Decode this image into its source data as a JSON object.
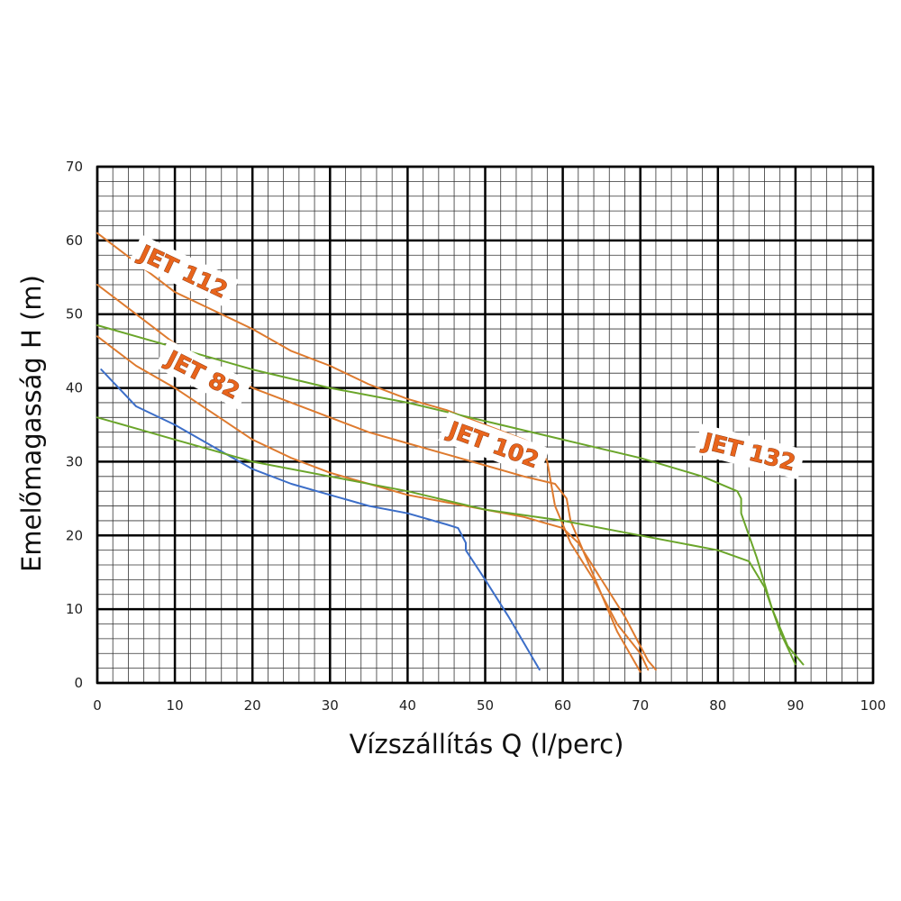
{
  "chart_data": {
    "type": "line",
    "title": "",
    "xlabel": "Vízszállítás Q (l/perc)",
    "ylabel": "Emelőmagasság H (m)",
    "xlim": [
      0,
      100
    ],
    "ylim": [
      0,
      70
    ],
    "x_ticks": [
      "0",
      "10",
      "20",
      "30",
      "40",
      "50",
      "60",
      "70",
      "80",
      "90",
      "100"
    ],
    "y_ticks": [
      "0",
      "10",
      "20",
      "30",
      "40",
      "50",
      "60",
      "70"
    ],
    "grid": true,
    "colors": {
      "blue": "#3c6ec8",
      "orange": "#de7a2e",
      "green": "#6aa52a",
      "label": "#e8641c"
    },
    "series": [
      {
        "color": "#3c6ec8",
        "points": [
          [
            0.5,
            42.5
          ],
          [
            5,
            37.5
          ],
          [
            10,
            35
          ],
          [
            15,
            32
          ],
          [
            20,
            29
          ],
          [
            25,
            27
          ],
          [
            30,
            25.5
          ],
          [
            35,
            24
          ],
          [
            40,
            23
          ],
          [
            45,
            21.5
          ],
          [
            46.5,
            21
          ],
          [
            47.5,
            19
          ],
          [
            47.5,
            18
          ],
          [
            50,
            14
          ],
          [
            53,
            9
          ],
          [
            57,
            1.8
          ]
        ]
      },
      {
        "name": "JET 82",
        "color": "#de7a2e",
        "points": [
          [
            0,
            47
          ],
          [
            5,
            43
          ],
          [
            10,
            40
          ],
          [
            15,
            36.5
          ],
          [
            20,
            33
          ],
          [
            25,
            30.5
          ],
          [
            30,
            28.5
          ],
          [
            35,
            27
          ],
          [
            40,
            25.5
          ],
          [
            45,
            24.5
          ],
          [
            50,
            23.5
          ],
          [
            55,
            22.5
          ],
          [
            60,
            21
          ],
          [
            62,
            19
          ],
          [
            65,
            14
          ],
          [
            68,
            9
          ],
          [
            71,
            3
          ],
          [
            72,
            1.8
          ]
        ]
      },
      {
        "name": "JET 102",
        "color": "#de7a2e",
        "points": [
          [
            0,
            54
          ],
          [
            5,
            50
          ],
          [
            10,
            46
          ],
          [
            15,
            43
          ],
          [
            20,
            40
          ],
          [
            25,
            38
          ],
          [
            30,
            36
          ],
          [
            35,
            34
          ],
          [
            40,
            32.5
          ],
          [
            45,
            31
          ],
          [
            50,
            29.5
          ],
          [
            55,
            28
          ],
          [
            59,
            27
          ],
          [
            60.5,
            25
          ],
          [
            61,
            22
          ],
          [
            63,
            17
          ],
          [
            65,
            12
          ],
          [
            67,
            7
          ],
          [
            70,
            1.5
          ]
        ]
      },
      {
        "name": "JET 112",
        "color": "#de7a2e",
        "points": [
          [
            0,
            61
          ],
          [
            5,
            57
          ],
          [
            10,
            53
          ],
          [
            15,
            50.5
          ],
          [
            20,
            48
          ],
          [
            25,
            45
          ],
          [
            30,
            43
          ],
          [
            35,
            40.5
          ],
          [
            40,
            38.5
          ],
          [
            45,
            37
          ],
          [
            50,
            35
          ],
          [
            55,
            33
          ],
          [
            57,
            32
          ],
          [
            58,
            30
          ],
          [
            58.5,
            27
          ],
          [
            59,
            24
          ],
          [
            61,
            19
          ],
          [
            64,
            14
          ],
          [
            67,
            8
          ],
          [
            70,
            4
          ],
          [
            71,
            1.8
          ]
        ]
      },
      {
        "color": "#6aa52a",
        "points": [
          [
            0,
            36
          ],
          [
            5,
            34.5
          ],
          [
            10,
            33
          ],
          [
            15,
            31.5
          ],
          [
            20,
            30
          ],
          [
            30,
            28
          ],
          [
            40,
            26
          ],
          [
            50,
            23.5
          ],
          [
            60,
            22
          ],
          [
            70,
            20
          ],
          [
            80,
            18
          ],
          [
            84,
            16.5
          ],
          [
            86,
            13
          ],
          [
            88,
            7
          ],
          [
            90,
            2.5
          ]
        ]
      },
      {
        "name": "JET 132",
        "color": "#6aa52a",
        "points": [
          [
            0,
            48.5
          ],
          [
            5,
            47
          ],
          [
            10,
            45.5
          ],
          [
            15,
            44
          ],
          [
            20,
            42.5
          ],
          [
            30,
            40
          ],
          [
            40,
            38
          ],
          [
            50,
            35.5
          ],
          [
            60,
            33
          ],
          [
            70,
            30.5
          ],
          [
            78,
            28
          ],
          [
            82.5,
            26
          ],
          [
            83,
            25
          ],
          [
            83,
            23
          ],
          [
            85,
            17
          ],
          [
            87,
            10
          ],
          [
            89,
            5
          ],
          [
            91,
            2.5
          ]
        ]
      }
    ],
    "annotations": [
      {
        "text": "JET 112",
        "x": 11,
        "y": 55.5,
        "angle": 25
      },
      {
        "text": "JET 82",
        "x": 13.5,
        "y": 41.5,
        "angle": 27
      },
      {
        "text": "JET 102",
        "x": 51,
        "y": 32,
        "angle": 20
      },
      {
        "text": "JET 132",
        "x": 84,
        "y": 31,
        "angle": 14
      }
    ]
  }
}
